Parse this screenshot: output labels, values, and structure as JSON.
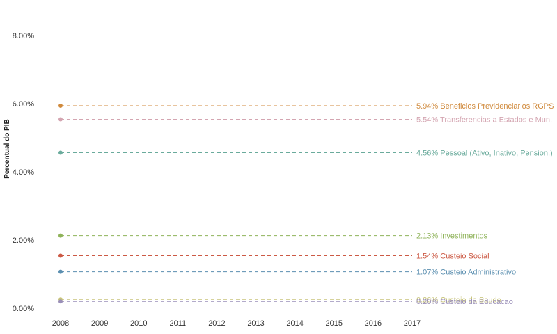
{
  "chart_data": {
    "type": "line",
    "title": "",
    "xlabel": "",
    "ylabel": "Percentual do PIB",
    "x": [
      "2008",
      "2009",
      "2010",
      "2011",
      "2012",
      "2013",
      "2014",
      "2015",
      "2016",
      "2017"
    ],
    "xlim": [
      2008,
      2017
    ],
    "ylim": [
      0,
      8.0
    ],
    "yticks": [
      "0.00%",
      "2.00%",
      "4.00%",
      "6.00%",
      "8.00%"
    ],
    "yticks_values": [
      0,
      2,
      4,
      6,
      8
    ],
    "grid": false,
    "legend": "direct labels at right end",
    "series": [
      {
        "name": "Beneficios Previdenciarios RGPS",
        "label": "5.94% Beneficios Previdenciarios RGPS",
        "value": 5.94,
        "color": "#d08a3c"
      },
      {
        "name": "Transferencias a Estados e Mun.",
        "label": "5.54% Transferencias a Estados e Mun.",
        "value": 5.54,
        "color": "#d4a5b1"
      },
      {
        "name": "Pessoal (Ativo, Inativo, Pension.)",
        "label": "4.56% Pessoal (Ativo, Inativo, Pension.)",
        "value": 4.56,
        "color": "#6aab9c"
      },
      {
        "name": "Investimentos",
        "label": "2.13% Investimentos",
        "value": 2.13,
        "color": "#8fb35a"
      },
      {
        "name": "Custeio Social",
        "label": "1.54% Custeio Social",
        "value": 1.54,
        "color": "#cc5a45"
      },
      {
        "name": "Custeio Administrativo",
        "label": "1.07% Custeio Administrativo",
        "value": 1.07,
        "color": "#5b8fb0"
      },
      {
        "name": "Custeio da Saude",
        "label": "0.26% Custeio da Saude",
        "value": 0.26,
        "color": "#c8c47a"
      },
      {
        "name": "Custeio da Educacao",
        "label": "0.20% Custeio da Educacao",
        "value": 0.2,
        "color": "#9a8fb8"
      }
    ]
  }
}
